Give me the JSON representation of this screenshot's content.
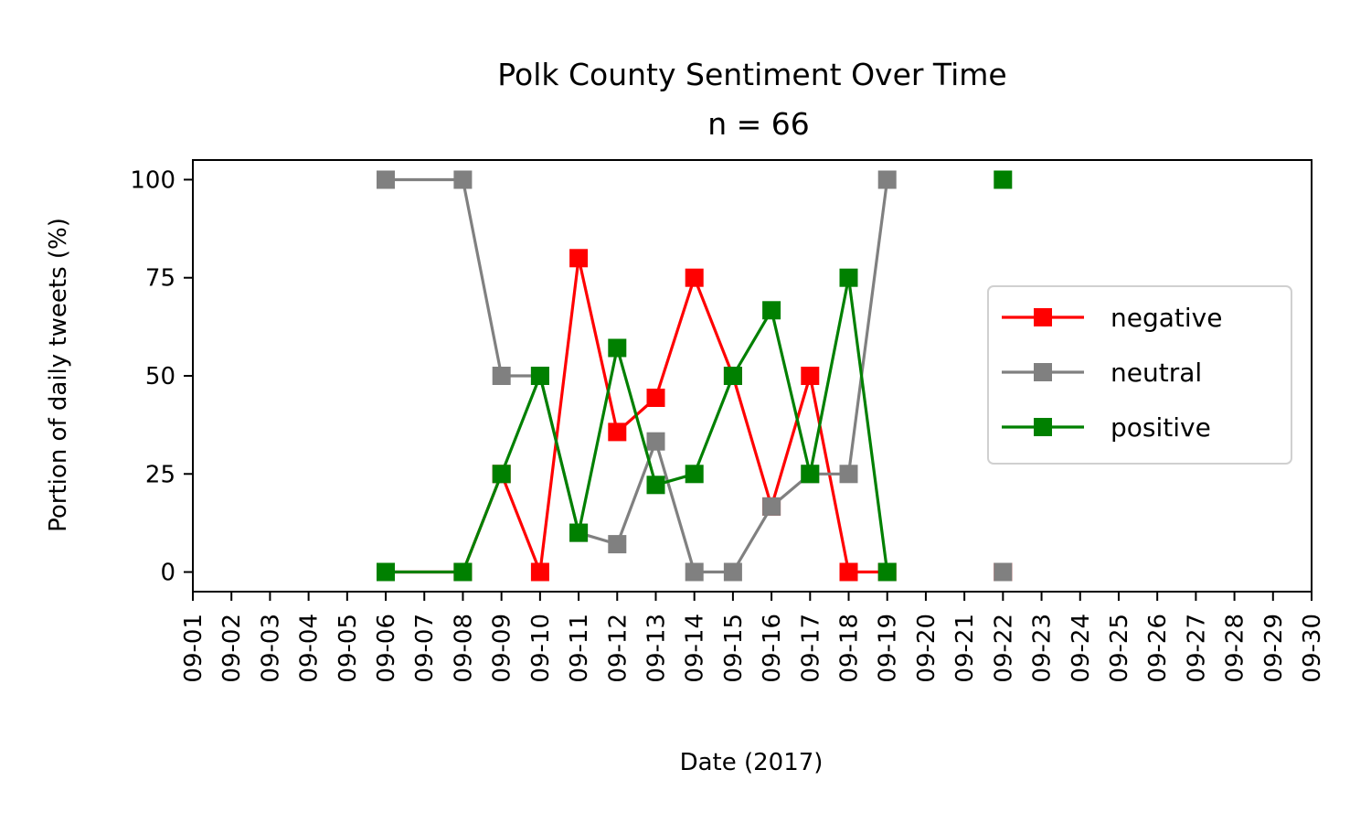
{
  "chart_data": {
    "type": "line",
    "title": "Polk County Sentiment Over Time",
    "subtitle": "n = 66",
    "xlabel": "Date (2017)",
    "ylabel": "Portion of daily tweets (%)",
    "x": [
      "09-01",
      "09-02",
      "09-03",
      "09-04",
      "09-05",
      "09-06",
      "09-07",
      "09-08",
      "09-09",
      "09-10",
      "09-11",
      "09-12",
      "09-13",
      "09-14",
      "09-15",
      "09-16",
      "09-17",
      "09-18",
      "09-19",
      "09-20",
      "09-21",
      "09-22",
      "09-23",
      "09-24",
      "09-25",
      "09-26",
      "09-27",
      "09-28",
      "09-29",
      "09-30"
    ],
    "ylim": [
      -5,
      105
    ],
    "yticks": [
      0,
      25,
      50,
      75,
      100
    ],
    "grid": false,
    "legend_position": "center-right",
    "series": [
      {
        "name": "negative",
        "color": "#ff0000",
        "points": [
          {
            "x": "09-06",
            "y": 0
          },
          {
            "x": "09-08",
            "y": 0
          },
          {
            "x": "09-09",
            "y": 25
          },
          {
            "x": "09-10",
            "y": 0
          },
          {
            "x": "09-11",
            "y": 80
          },
          {
            "x": "09-12",
            "y": 35.7
          },
          {
            "x": "09-13",
            "y": 44.4
          },
          {
            "x": "09-14",
            "y": 75
          },
          {
            "x": "09-15",
            "y": 50
          },
          {
            "x": "09-16",
            "y": 16.7
          },
          {
            "x": "09-17",
            "y": 50
          },
          {
            "x": "09-18",
            "y": 0
          },
          {
            "x": "09-19",
            "y": 0
          },
          {
            "x": "09-22",
            "y": 0
          }
        ]
      },
      {
        "name": "neutral",
        "color": "#808080",
        "points": [
          {
            "x": "09-06",
            "y": 100
          },
          {
            "x": "09-08",
            "y": 100
          },
          {
            "x": "09-09",
            "y": 50
          },
          {
            "x": "09-10",
            "y": 50
          },
          {
            "x": "09-11",
            "y": 10
          },
          {
            "x": "09-12",
            "y": 7.1
          },
          {
            "x": "09-13",
            "y": 33.3
          },
          {
            "x": "09-14",
            "y": 0
          },
          {
            "x": "09-15",
            "y": 0
          },
          {
            "x": "09-16",
            "y": 16.7
          },
          {
            "x": "09-17",
            "y": 25
          },
          {
            "x": "09-18",
            "y": 25
          },
          {
            "x": "09-19",
            "y": 100
          },
          {
            "x": "09-22",
            "y": 0
          }
        ]
      },
      {
        "name": "positive",
        "color": "#008000",
        "points": [
          {
            "x": "09-06",
            "y": 0
          },
          {
            "x": "09-08",
            "y": 0
          },
          {
            "x": "09-09",
            "y": 25
          },
          {
            "x": "09-10",
            "y": 50
          },
          {
            "x": "09-11",
            "y": 10
          },
          {
            "x": "09-12",
            "y": 57.1
          },
          {
            "x": "09-13",
            "y": 22.2
          },
          {
            "x": "09-14",
            "y": 25
          },
          {
            "x": "09-15",
            "y": 50
          },
          {
            "x": "09-16",
            "y": 66.7
          },
          {
            "x": "09-17",
            "y": 25
          },
          {
            "x": "09-18",
            "y": 75
          },
          {
            "x": "09-19",
            "y": 0
          },
          {
            "x": "09-22",
            "y": 100
          }
        ]
      }
    ]
  }
}
